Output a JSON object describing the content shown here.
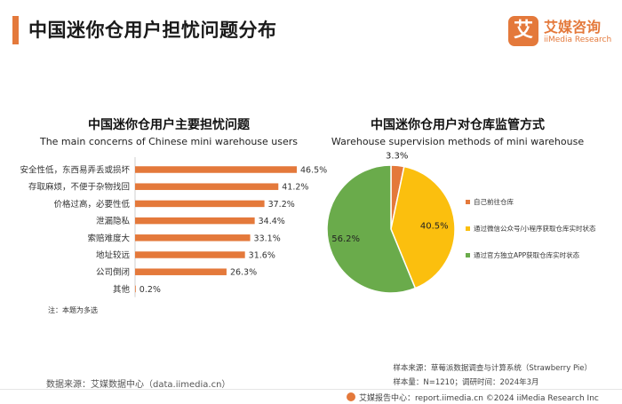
{
  "page": {
    "title": "中国迷你仓用户担忧问题分布",
    "brand_name": "艾媒咨询",
    "brand_sub": "iiMedia Research",
    "brand_logo_char": "艾",
    "accent_color": "#e4793b"
  },
  "left_chart": {
    "title": "中国迷你仓用户主要担忧问题",
    "subtitle": "The main concerns of Chinese mini warehouse users",
    "note": "注：本题为多选"
  },
  "right_chart": {
    "title": "中国迷你仓用户对仓库监管方式",
    "subtitle": "Warehouse supervision methods of mini warehouse"
  },
  "chart_data": [
    {
      "type": "bar",
      "orientation": "horizontal",
      "categories": [
        "安全性低，东西易弄丢或损坏",
        "存取麻烦，不便于杂物找回",
        "价格过高，必要性低",
        "泄漏隐私",
        "索赔难度大",
        "地址较远",
        "公司倒闭",
        "其他"
      ],
      "values": [
        46.5,
        41.2,
        37.2,
        34.4,
        33.1,
        31.6,
        26.3,
        0.2
      ],
      "value_labels": [
        "46.5%",
        "41.2%",
        "37.2%",
        "34.4%",
        "33.1%",
        "31.6%",
        "26.3%",
        "0.2%"
      ],
      "unit": "%",
      "color": "#e4793b",
      "grid": false
    },
    {
      "type": "pie",
      "labels": [
        "自己前往仓库",
        "通过微信公众号/小程序获取仓库实时状态",
        "通过官方独立APP获取仓库实时状态"
      ],
      "values": [
        3.3,
        40.5,
        56.2
      ],
      "value_labels": [
        "3.3%",
        "40.5%",
        "56.2%"
      ],
      "colors": [
        "#e4793b",
        "#fbbf0e",
        "#6aab4b"
      ],
      "legend_position": "right"
    }
  ],
  "sources": {
    "left": "数据来源：艾媒数据中心（data.iimedia.cn）",
    "right_line1": "样本来源：草莓派数据调查与计算系统（Strawberry Pie）",
    "right_line2": "样本量：N=1210；调研时间：2024年3月"
  },
  "footer": {
    "text": "艾媒报告中心：report.iimedia.cn    ©2024  iiMedia Research  Inc"
  }
}
